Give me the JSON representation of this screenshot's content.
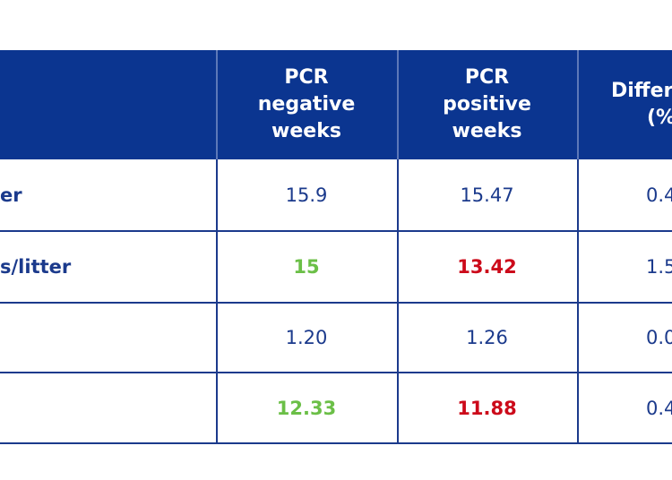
{
  "table": {
    "header": [
      null,
      [
        "PCR",
        "negative",
        "weeks"
      ],
      [
        "PCR",
        "positive",
        "weeks"
      ],
      [
        "Differ",
        "(%"
      ]
    ],
    "rows": [
      [
        {
          "text": "er"
        },
        {
          "text": "15.9"
        },
        {
          "text": "15.47"
        },
        {
          "text": "0.4"
        }
      ],
      [
        {
          "text": "s/litter"
        },
        {
          "text": "15",
          "color": "#6bbf47"
        },
        {
          "text": "13.42",
          "color": "#cc0a1a"
        },
        {
          "text": "1.5"
        }
      ],
      [
        {
          "text": ""
        },
        {
          "text": "1.20"
        },
        {
          "text": "1.26"
        },
        {
          "text": "0.0"
        }
      ],
      [
        {
          "text": ""
        },
        {
          "text": "12.33",
          "color": "#6bbf47"
        },
        {
          "text": "11.88",
          "color": "#cc0a1a"
        },
        {
          "text": "0.4"
        }
      ]
    ]
  }
}
